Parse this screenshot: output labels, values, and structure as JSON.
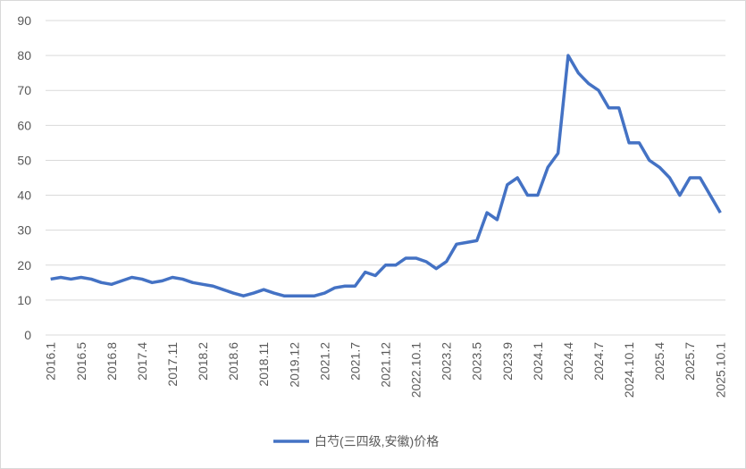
{
  "chart_data": {
    "type": "line",
    "categories": [
      "2016.1",
      null,
      null,
      "2016.5",
      null,
      null,
      "2016.8",
      null,
      null,
      "2017.4",
      null,
      null,
      "2017.11",
      null,
      null,
      "2018.2",
      null,
      null,
      "2018.6",
      null,
      null,
      "2018.11",
      null,
      null,
      "2019.12",
      null,
      null,
      "2021.2",
      null,
      null,
      "2021.7",
      null,
      null,
      "2021.12",
      null,
      null,
      "2022.10.1",
      null,
      null,
      "2023.2",
      null,
      null,
      "2023.5",
      null,
      null,
      "2023.9",
      null,
      null,
      "2024.1",
      null,
      null,
      "2024.4",
      null,
      null,
      "2024.7",
      null,
      null,
      "2024.10.1",
      null,
      null,
      "2025.4",
      null,
      null,
      "2025.7",
      null,
      null,
      "2025.10.1"
    ],
    "series": [
      {
        "name": "白芍(三四级,安徽)价格",
        "color": "#4472c4",
        "values": [
          16,
          16.5,
          16,
          16.5,
          16,
          15,
          14.5,
          15.5,
          16.5,
          16,
          15,
          15.5,
          16.5,
          16,
          15,
          14.5,
          14,
          13,
          12,
          11.2,
          12,
          13,
          12,
          11.2,
          11.2,
          11.2,
          11.2,
          12,
          13.5,
          14,
          14,
          18,
          17,
          20,
          20,
          22,
          22,
          21,
          19,
          21,
          26,
          26.5,
          27,
          35,
          33,
          43,
          45,
          40,
          40,
          48,
          52,
          80,
          75,
          72,
          70,
          65,
          65,
          55,
          55,
          50,
          48,
          45,
          40,
          45,
          45,
          40,
          35
        ]
      }
    ],
    "ylim": [
      0,
      90
    ],
    "yticks": [
      0,
      10,
      20,
      30,
      40,
      50,
      60,
      70,
      80,
      90
    ],
    "grid": true,
    "legend": "bottom"
  }
}
